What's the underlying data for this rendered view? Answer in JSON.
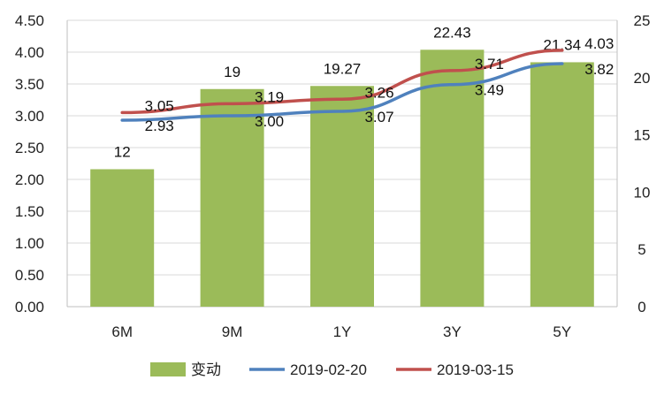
{
  "chart_data": {
    "type": "bar+line",
    "categories": [
      "6M",
      "9M",
      "1Y",
      "3Y",
      "5Y"
    ],
    "bars": {
      "name": "变动",
      "axis": "right",
      "values": [
        12,
        19,
        19.27,
        22.43,
        21.34
      ],
      "labels": [
        "12",
        "19",
        "19.27",
        "22.43",
        "21.34"
      ],
      "color": "#9bbb59"
    },
    "series": [
      {
        "name": "2019-02-20",
        "axis": "left",
        "values": [
          2.93,
          3.0,
          3.07,
          3.49,
          3.82
        ],
        "labels": [
          "2.93",
          "3.00",
          "3.07",
          "3.49",
          "3.82"
        ],
        "color": "#4f81bd"
      },
      {
        "name": "2019-03-15",
        "axis": "left",
        "values": [
          3.05,
          3.19,
          3.26,
          3.71,
          4.03
        ],
        "labels": [
          "3.05",
          "3.19",
          "3.26",
          "3.71",
          "4.03"
        ],
        "color": "#c0504d"
      }
    ],
    "y_left": {
      "range": [
        0,
        4.5
      ],
      "ticks": [
        "0.00",
        "0.50",
        "1.00",
        "1.50",
        "2.00",
        "2.50",
        "3.00",
        "3.50",
        "4.00",
        "4.50"
      ]
    },
    "y_right": {
      "range": [
        0,
        25
      ],
      "ticks": [
        "0",
        "5",
        "10",
        "15",
        "20",
        "25"
      ]
    },
    "grid": true,
    "legend_position": "bottom"
  }
}
